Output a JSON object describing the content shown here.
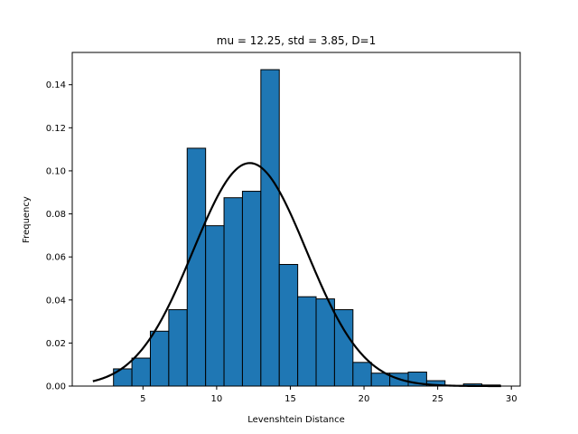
{
  "chart_data": {
    "type": "bar",
    "title": "mu = 12.25,  std = 3.85,  D=1",
    "xlabel": "Levenshtein Distance",
    "ylabel": "Frequency",
    "xlim": [
      0.2,
      30.6
    ],
    "ylim": [
      0,
      0.155
    ],
    "xticks": [
      5,
      10,
      15,
      20,
      25,
      30
    ],
    "yticks": [
      0.0,
      0.02,
      0.04,
      0.06,
      0.08,
      0.1,
      0.12,
      0.14
    ],
    "xtick_labels": [
      "5",
      "10",
      "15",
      "20",
      "25",
      "30"
    ],
    "ytick_labels": [
      "0.00",
      "0.02",
      "0.04",
      "0.06",
      "0.08",
      "0.10",
      "0.12",
      "0.14"
    ],
    "bin_edges": [
      3.0,
      4.25,
      5.5,
      6.75,
      8.0,
      9.25,
      10.5,
      11.75,
      13.0,
      14.25,
      15.5,
      16.75,
      18.0,
      19.25,
      20.5,
      21.75,
      23.0,
      24.25,
      25.5,
      26.75,
      28.0,
      29.25
    ],
    "values": [
      0.008,
      0.013,
      0.0255,
      0.0355,
      0.1105,
      0.0745,
      0.0875,
      0.0905,
      0.147,
      0.0565,
      0.0415,
      0.0405,
      0.0355,
      0.011,
      0.006,
      0.006,
      0.0065,
      0.0025,
      0.0,
      0.001,
      0.0005
    ],
    "bar_color": "#1f77b4",
    "bar_edge_color": "#000000",
    "fit_curve": {
      "type": "normal",
      "mu": 12.25,
      "std": 3.85,
      "x_range": [
        1.6,
        29.3
      ],
      "color": "#000000"
    },
    "grid": false
  }
}
